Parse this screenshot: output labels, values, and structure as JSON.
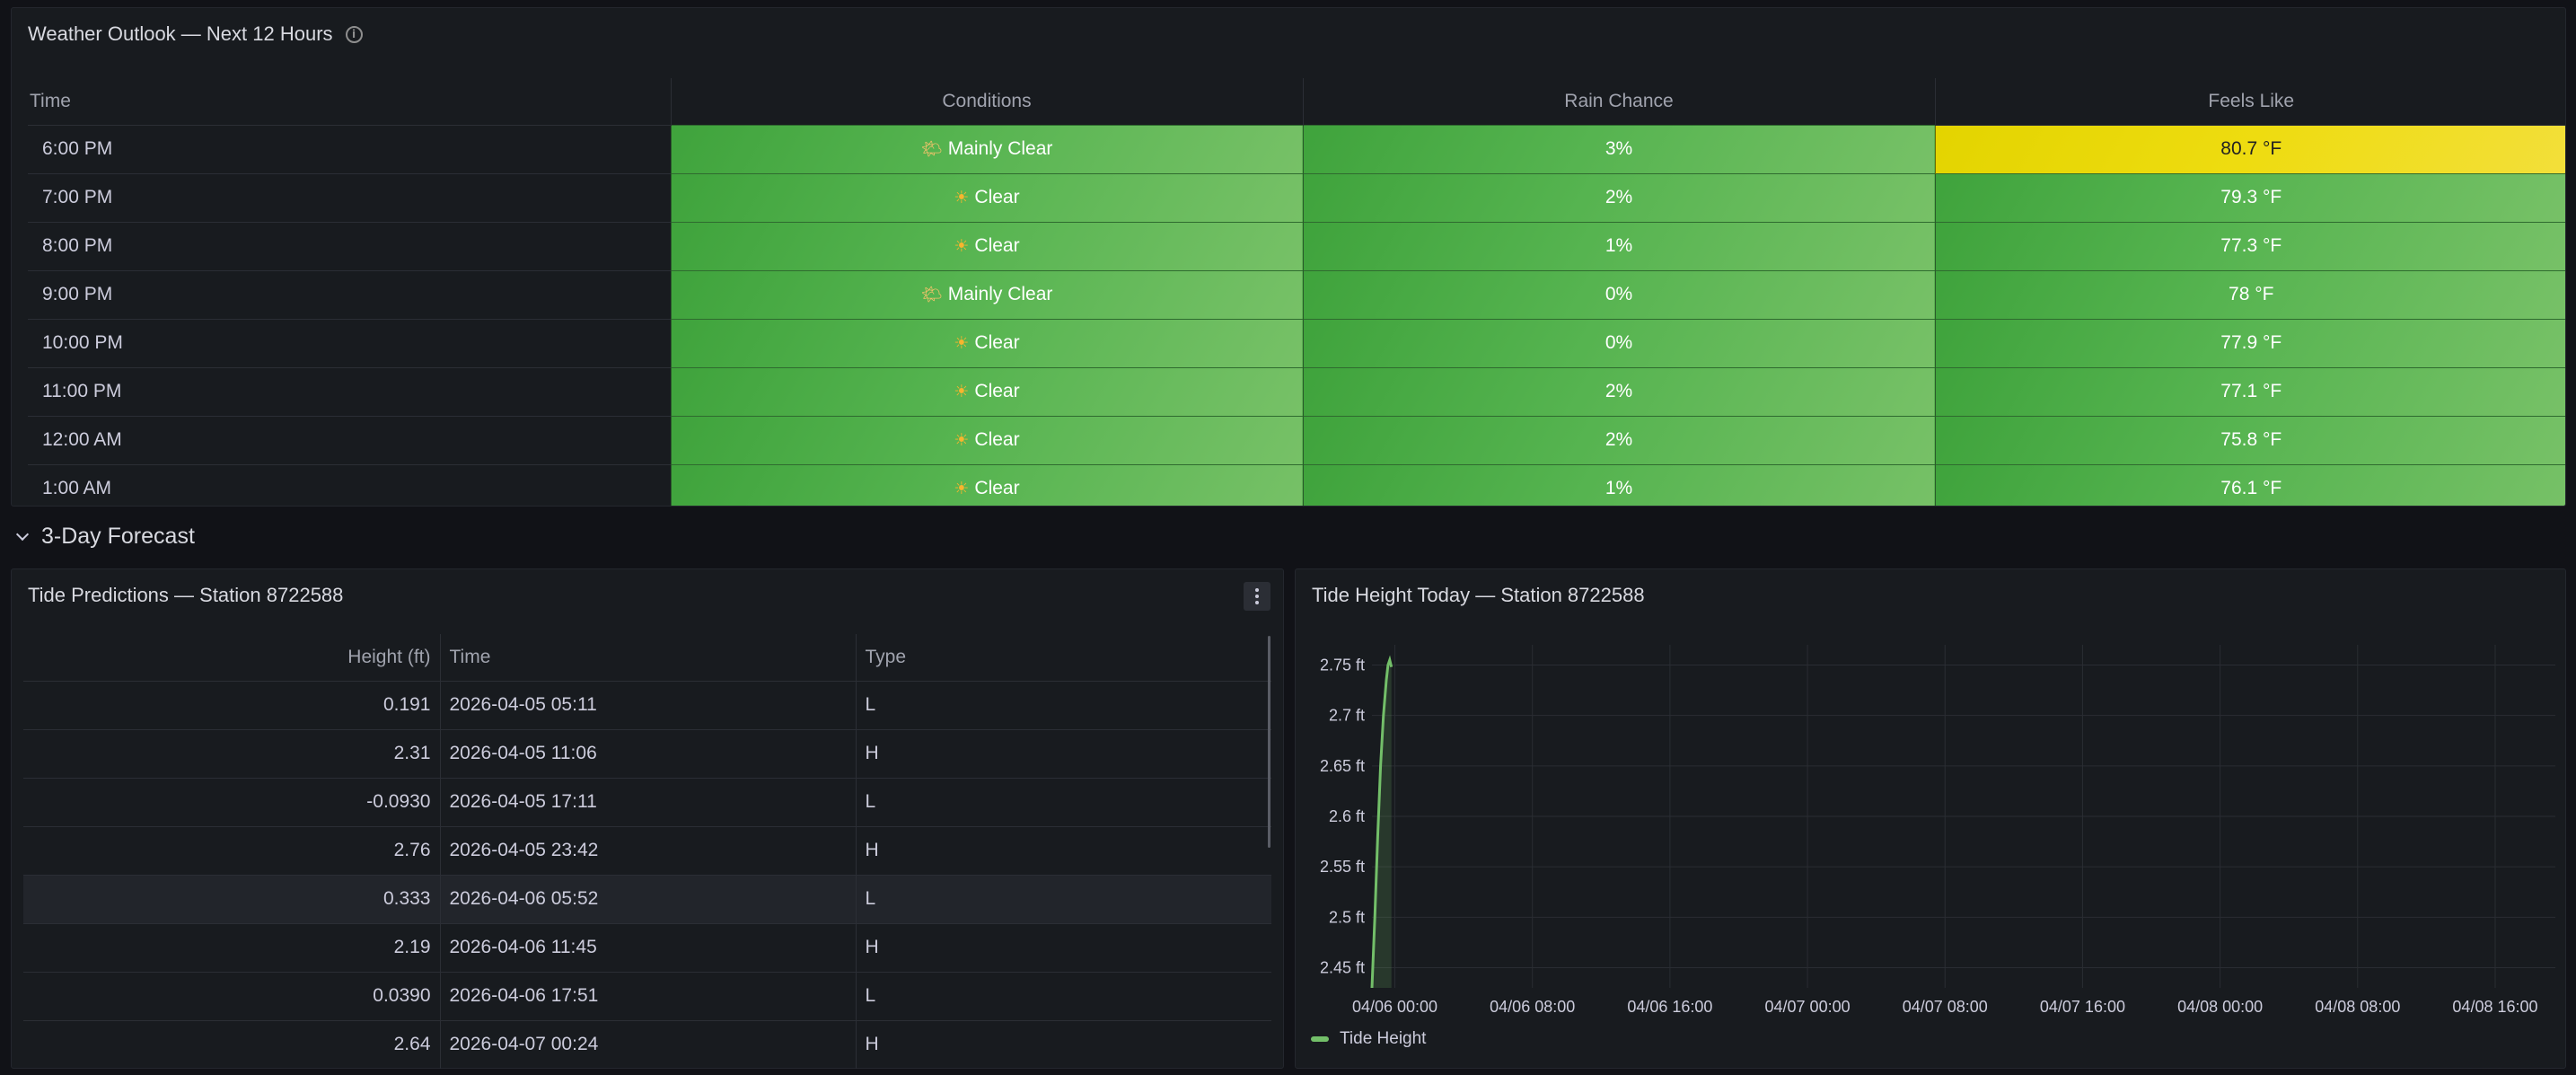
{
  "weather": {
    "title": "Weather Outlook — Next 12 Hours",
    "columns": [
      "Time",
      "Conditions",
      "Rain Chance",
      "Feels Like"
    ],
    "rows": [
      {
        "time": "6:00 PM",
        "cond": "Mainly Clear",
        "icon": "partly-cloudy-icon",
        "rain": "3%",
        "feels": "80.7 °F",
        "feels_color": "#e6d300"
      },
      {
        "time": "7:00 PM",
        "cond": "Clear",
        "icon": "sun-icon",
        "rain": "2%",
        "feels": "79.3 °F",
        "feels_color": "#56b450"
      },
      {
        "time": "8:00 PM",
        "cond": "Clear",
        "icon": "sun-icon",
        "rain": "1%",
        "feels": "77.3 °F",
        "feels_color": "#56b450"
      },
      {
        "time": "9:00 PM",
        "cond": "Mainly Clear",
        "icon": "partly-cloudy-icon",
        "rain": "0%",
        "feels": "78 °F",
        "feels_color": "#56b450"
      },
      {
        "time": "10:00 PM",
        "cond": "Clear",
        "icon": "sun-icon",
        "rain": "0%",
        "feels": "77.9 °F",
        "feels_color": "#56b450"
      },
      {
        "time": "11:00 PM",
        "cond": "Clear",
        "icon": "sun-icon",
        "rain": "2%",
        "feels": "77.1 °F",
        "feels_color": "#56b450"
      },
      {
        "time": "12:00 AM",
        "cond": "Clear",
        "icon": "sun-icon",
        "rain": "2%",
        "feels": "75.8 °F",
        "feels_color": "#56b450"
      },
      {
        "time": "1:00 AM",
        "cond": "Clear",
        "icon": "sun-icon",
        "rain": "1%",
        "feels": "76.1 °F",
        "feels_color": "#56b450"
      }
    ]
  },
  "section": {
    "title": "3-Day Forecast"
  },
  "tides": {
    "title": "Tide Predictions — Station 8722588",
    "columns": [
      "Height (ft)",
      "Time",
      "Type"
    ],
    "rows": [
      {
        "height": "0.191",
        "time": "2026-04-05 05:11",
        "type": "L"
      },
      {
        "height": "2.31",
        "time": "2026-04-05 11:06",
        "type": "H"
      },
      {
        "height": "-0.0930",
        "time": "2026-04-05 17:11",
        "type": "L"
      },
      {
        "height": "2.76",
        "time": "2026-04-05 23:42",
        "type": "H"
      },
      {
        "height": "0.333",
        "time": "2026-04-06 05:52",
        "type": "L",
        "highlight": true
      },
      {
        "height": "2.19",
        "time": "2026-04-06 11:45",
        "type": "H"
      },
      {
        "height": "0.0390",
        "time": "2026-04-06 17:51",
        "type": "L"
      },
      {
        "height": "2.64",
        "time": "2026-04-07 00:24",
        "type": "H"
      }
    ]
  },
  "tide_chart": {
    "title": "Tide Height Today — Station 8722588",
    "chart_data": {
      "type": "line",
      "series": [
        {
          "name": "Tide Height",
          "color": "#73bf69",
          "x": [
            "04/05 22:40",
            "04/05 22:50",
            "04/05 23:00",
            "04/05 23:10",
            "04/05 23:20",
            "04/05 23:30",
            "04/05 23:36",
            "04/05 23:42",
            "04/05 23:48"
          ],
          "values": [
            2.43,
            2.5,
            2.58,
            2.65,
            2.7,
            2.735,
            2.75,
            2.755,
            2.748
          ]
        }
      ],
      "y_ticks": [
        "2.75 ft",
        "2.7 ft",
        "2.65 ft",
        "2.6 ft",
        "2.55 ft",
        "2.5 ft",
        "2.45 ft"
      ],
      "y_values": [
        2.75,
        2.7,
        2.65,
        2.6,
        2.55,
        2.5,
        2.45
      ],
      "x_ticks": [
        "04/06 00:00",
        "04/06 08:00",
        "04/06 16:00",
        "04/07 00:00",
        "04/07 08:00",
        "04/07 16:00",
        "04/08 00:00",
        "04/08 08:00",
        "04/08 16:00"
      ],
      "ylim": [
        2.43,
        2.77
      ],
      "xlim": [
        "04/05 22:40",
        "04/08 19:30"
      ],
      "grid": true,
      "legend_placement": "bottom-left"
    }
  }
}
